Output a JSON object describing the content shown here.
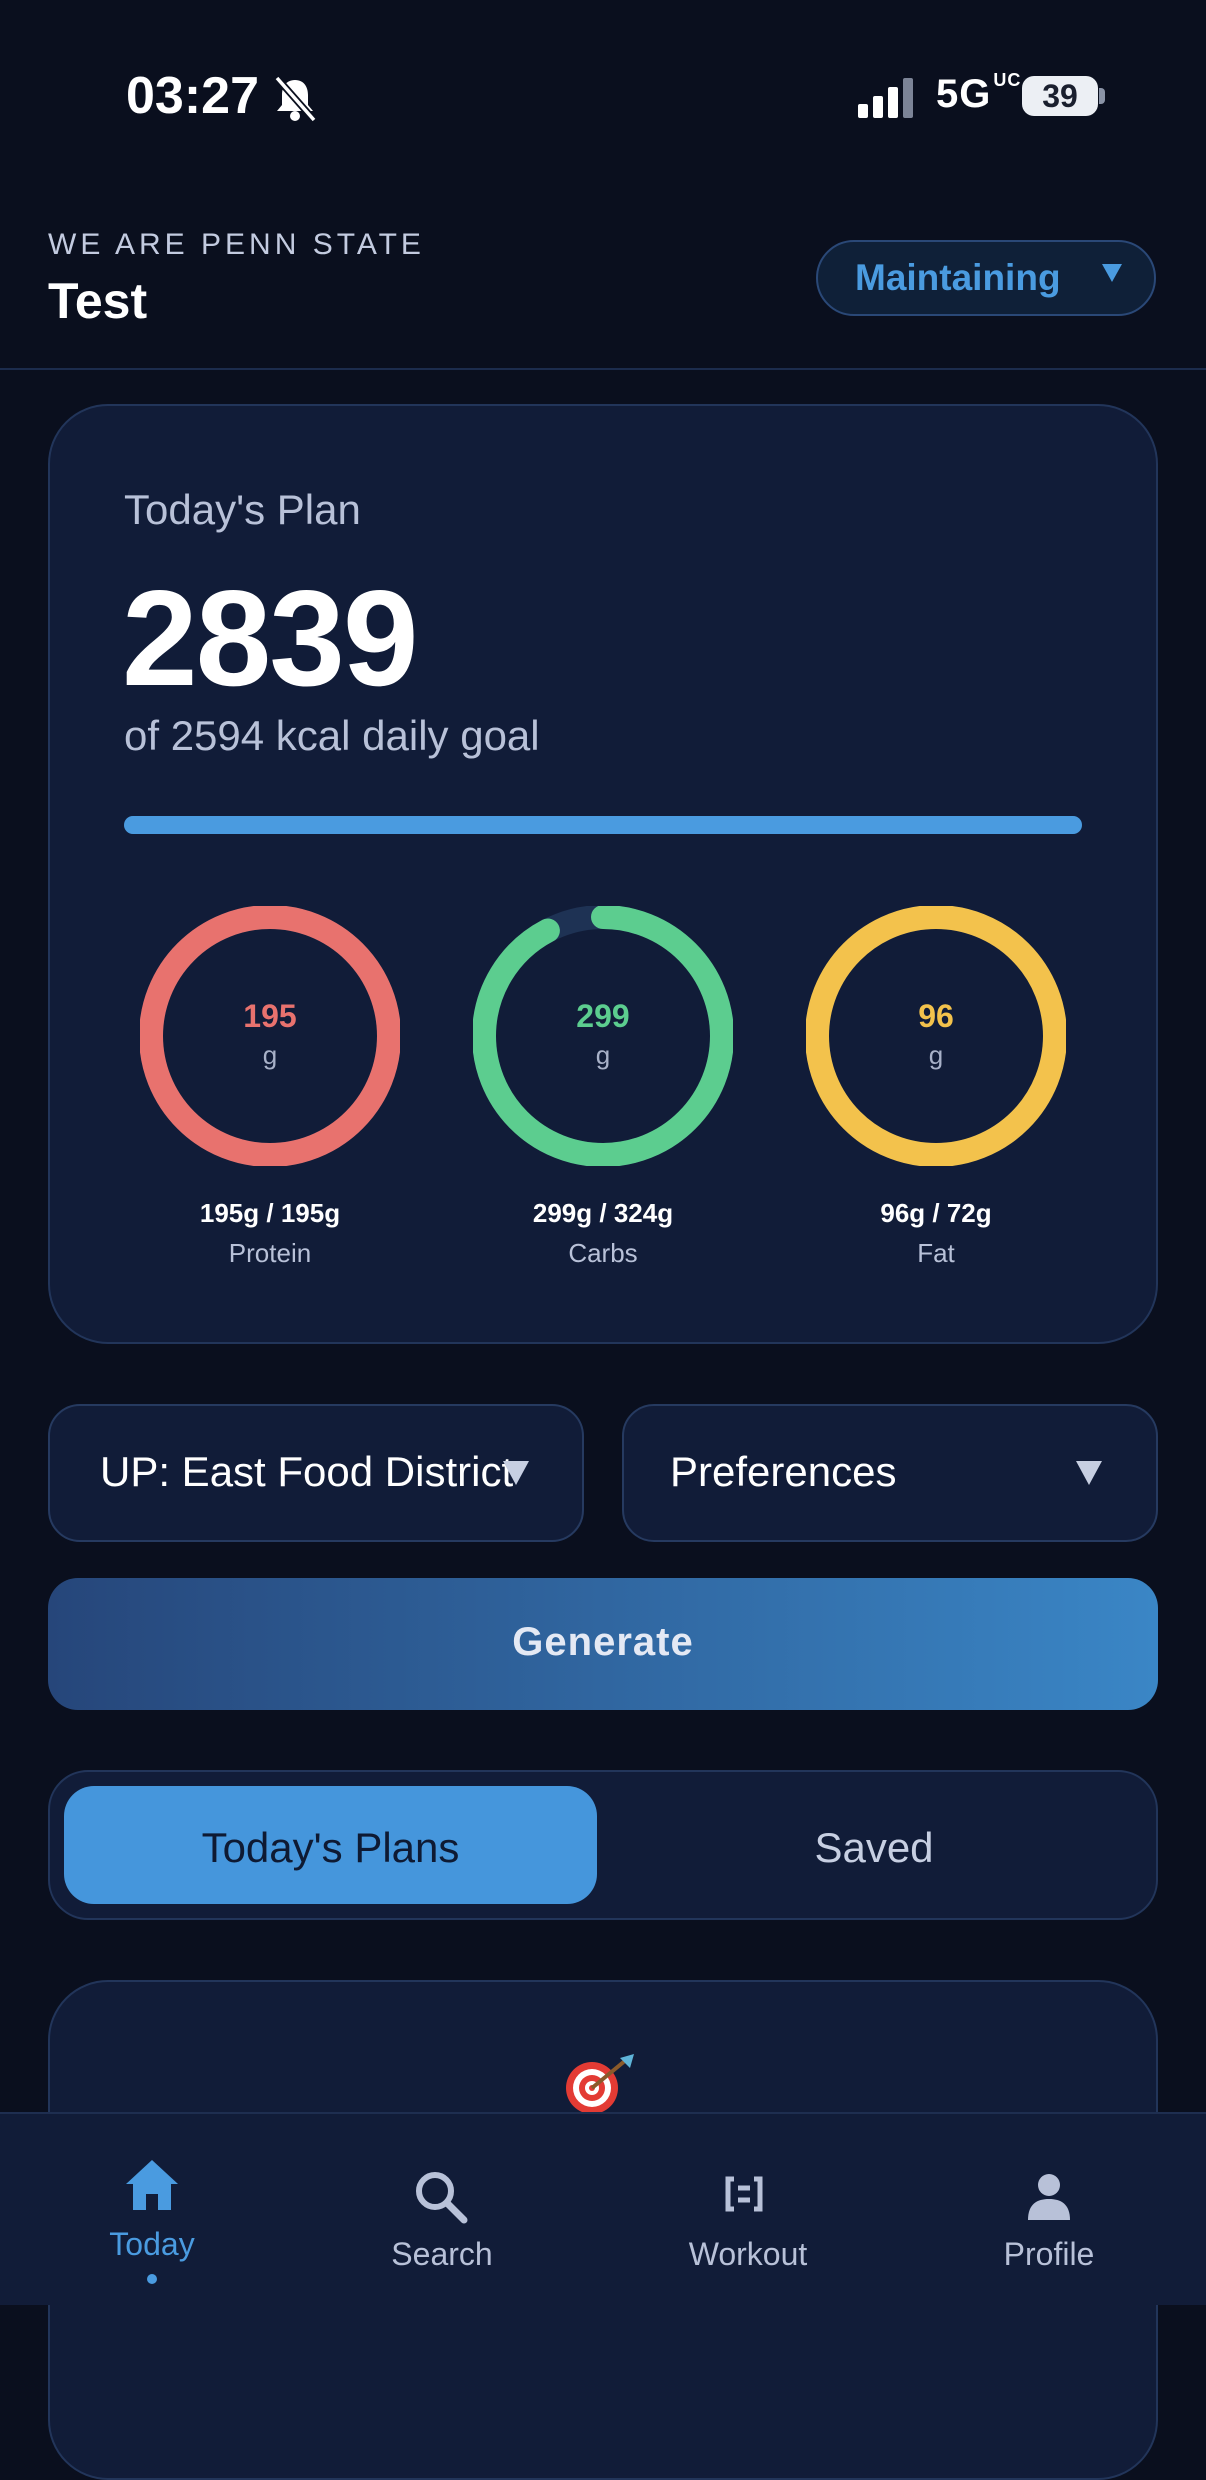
{
  "status_bar": {
    "time": "03:27",
    "network": "5G",
    "network_suffix": "UC",
    "battery": "39"
  },
  "header": {
    "subtitle": "WE ARE PENN STATE",
    "title": "Test",
    "mode": "Maintaining"
  },
  "plan": {
    "label": "Today's Plan",
    "kcal": "2839",
    "goal_text": "of 2594 kcal daily goal",
    "progress_fraction": 1.0
  },
  "macros": [
    {
      "value": "195",
      "unit": "g",
      "amount": "195g / 195g",
      "name": "Protein",
      "color": "#e8726e",
      "fraction": 1.0
    },
    {
      "value": "299",
      "unit": "g",
      "amount": "299g / 324g",
      "name": "Carbs",
      "color": "#5ccd8f",
      "fraction": 0.923
    },
    {
      "value": "96",
      "unit": "g",
      "amount": "96g / 72g",
      "name": "Fat",
      "color": "#f3c24c",
      "fraction": 1.0
    }
  ],
  "filters": {
    "location": "UP: East Food District",
    "preferences": "Preferences"
  },
  "generate_label": "Generate",
  "segments": {
    "active": "Today's Plans",
    "other": "Saved"
  },
  "tabs": [
    {
      "label": "Today",
      "icon": "home-icon",
      "active": true
    },
    {
      "label": "Search",
      "icon": "search-icon",
      "active": false
    },
    {
      "label": "Workout",
      "icon": "workout-icon",
      "active": false
    },
    {
      "label": "Profile",
      "icon": "profile-icon",
      "active": false
    }
  ],
  "colors": {
    "accent": "#4a9be0",
    "background": "#0a0f1e",
    "card": "#111c38"
  }
}
